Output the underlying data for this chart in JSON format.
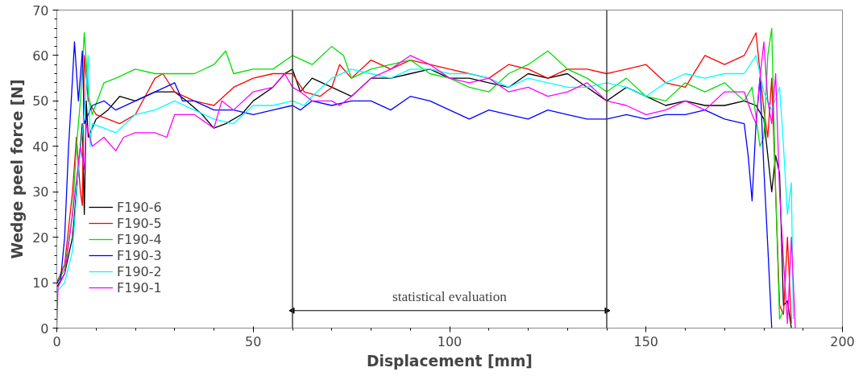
{
  "chart_data": {
    "type": "line",
    "xlabel": "Displacement [mm]",
    "ylabel": "Wedge peel force [N]",
    "xlim": [
      0,
      200
    ],
    "ylim": [
      0,
      70
    ],
    "xticks": [
      0,
      50,
      100,
      150,
      200
    ],
    "yticks": [
      0,
      10,
      20,
      30,
      40,
      50,
      60,
      70
    ],
    "grid": false,
    "legend": "bottom left",
    "line_style": "solid",
    "marker": "none",
    "ref_lines": [
      {
        "axis": "x",
        "value": 60,
        "color": "#404040"
      },
      {
        "axis": "x",
        "value": 140,
        "color": "#404040"
      }
    ],
    "annotations": [
      "statistical evaluation"
    ],
    "series": [
      {
        "name": "F190-6",
        "color": "#000000",
        "x": [
          0,
          2,
          4,
          5.5,
          6.5,
          7,
          7.5,
          8,
          10,
          13,
          16,
          20,
          25,
          30,
          33,
          37,
          40,
          43,
          47,
          50,
          55,
          58,
          60,
          62,
          65,
          70,
          75,
          80,
          85,
          90,
          95,
          100,
          105,
          110,
          115,
          120,
          125,
          130,
          135,
          140,
          145,
          150,
          155,
          160,
          165,
          170,
          175,
          178,
          180,
          182,
          183,
          184,
          185,
          186,
          187
        ],
        "values": [
          9,
          12,
          20,
          35,
          45,
          25,
          50,
          42,
          46,
          48,
          51,
          50,
          52,
          52,
          50,
          47,
          44,
          45,
          47,
          50,
          53,
          56,
          57,
          52,
          55,
          53,
          51,
          55,
          55,
          56,
          57,
          55,
          55,
          54,
          53,
          56,
          55,
          56,
          53,
          50,
          53,
          51,
          49,
          50,
          49,
          49,
          50,
          49,
          46,
          30,
          38,
          34,
          5,
          6,
          0
        ]
      },
      {
        "name": "F190-5",
        "color": "#ff0000",
        "x": [
          0,
          2,
          4,
          5,
          6,
          6.5,
          7,
          8,
          10,
          13,
          16,
          20,
          25,
          27,
          30,
          35,
          40,
          45,
          50,
          55,
          60,
          63,
          67,
          70,
          72,
          75,
          80,
          85,
          90,
          95,
          100,
          105,
          110,
          115,
          120,
          125,
          130,
          135,
          140,
          145,
          150,
          155,
          160,
          165,
          170,
          175,
          178,
          180,
          181,
          182,
          183,
          184,
          185,
          186,
          187
        ],
        "values": [
          10,
          14,
          30,
          42,
          30,
          27,
          60,
          50,
          47,
          46,
          45,
          47,
          55,
          56,
          52,
          50,
          49,
          53,
          55,
          56,
          56,
          52,
          51,
          53,
          58,
          55,
          59,
          57,
          59,
          58,
          57,
          56,
          55,
          58,
          57,
          55,
          57,
          57,
          56,
          57,
          58,
          54,
          53,
          60,
          58,
          60,
          65,
          48,
          42,
          55,
          30,
          5,
          3,
          20,
          1
        ]
      },
      {
        "name": "F190-4",
        "color": "#00e000",
        "x": [
          0,
          2,
          4,
          5,
          6,
          7,
          8,
          9,
          12,
          15,
          20,
          25,
          30,
          35,
          40,
          43,
          45,
          50,
          55,
          60,
          65,
          70,
          73,
          75,
          80,
          85,
          90,
          95,
          100,
          105,
          110,
          115,
          120,
          125,
          130,
          135,
          140,
          145,
          150,
          155,
          160,
          165,
          170,
          175,
          177,
          179,
          180,
          181,
          182,
          183,
          184,
          185
        ],
        "values": [
          10,
          13,
          25,
          40,
          50,
          65,
          52,
          47,
          54,
          55,
          57,
          56,
          56,
          56,
          58,
          61,
          56,
          57,
          57,
          60,
          58,
          62,
          60,
          55,
          57,
          58,
          59,
          56,
          55,
          53,
          52,
          56,
          58,
          61,
          57,
          55,
          52,
          55,
          51,
          50,
          54,
          52,
          54,
          50,
          53,
          40,
          42,
          60,
          66,
          30,
          2,
          4
        ]
      },
      {
        "name": "F190-3",
        "color": "#0000ff",
        "x": [
          0,
          1,
          2,
          3,
          4,
          4.5,
          5.5,
          6.5,
          7,
          9,
          12,
          15,
          20,
          25,
          30,
          32,
          35,
          40,
          45,
          50,
          55,
          60,
          62,
          65,
          70,
          75,
          80,
          85,
          90,
          95,
          100,
          105,
          110,
          115,
          120,
          125,
          130,
          135,
          140,
          145,
          150,
          155,
          160,
          165,
          170,
          175,
          176,
          177,
          178,
          179,
          180,
          181,
          182
        ],
        "values": [
          10,
          11,
          20,
          40,
          55,
          63,
          50,
          61,
          45,
          49,
          50,
          48,
          50,
          52,
          54,
          50,
          50,
          48,
          48,
          47,
          48,
          49,
          48,
          50,
          49,
          50,
          50,
          48,
          51,
          50,
          48,
          46,
          48,
          47,
          46,
          48,
          47,
          46,
          46,
          47,
          46,
          47,
          47,
          48,
          46,
          45,
          38,
          28,
          45,
          55,
          35,
          18,
          0
        ]
      },
      {
        "name": "F190-2",
        "color": "#00ffff",
        "x": [
          0,
          2,
          4,
          5.5,
          7,
          8,
          8.5,
          9,
          12,
          15,
          20,
          25,
          30,
          35,
          40,
          45,
          50,
          55,
          60,
          63,
          65,
          70,
          75,
          80,
          85,
          90,
          95,
          100,
          105,
          110,
          115,
          120,
          125,
          130,
          135,
          140,
          145,
          150,
          155,
          160,
          165,
          170,
          175,
          178,
          180,
          182,
          184,
          185,
          186,
          187,
          187.5
        ],
        "values": [
          8,
          10,
          17,
          35,
          47,
          60,
          40,
          45,
          44,
          43,
          47,
          48,
          50,
          48,
          46,
          45,
          49,
          49,
          50,
          49,
          51,
          55,
          57,
          56,
          55,
          57,
          57,
          56,
          56,
          55,
          53,
          55,
          54,
          53,
          53,
          54,
          53,
          51,
          54,
          56,
          55,
          56,
          56,
          60,
          52,
          48,
          53,
          40,
          25,
          32,
          2
        ]
      },
      {
        "name": "F190-1",
        "color": "#ff00ff",
        "x": [
          0,
          0.3,
          2,
          4,
          6,
          7,
          7.5,
          9,
          12,
          15,
          17,
          20,
          25,
          28,
          30,
          35,
          40,
          42,
          45,
          50,
          55,
          58,
          60,
          62,
          65,
          70,
          72,
          75,
          80,
          85,
          90,
          95,
          100,
          105,
          110,
          115,
          120,
          125,
          130,
          135,
          140,
          145,
          150,
          155,
          160,
          165,
          170,
          175,
          177,
          178,
          179,
          180,
          181,
          182,
          183,
          184,
          185,
          186,
          187,
          188
        ],
        "values": [
          0,
          9,
          12,
          25,
          40,
          35,
          45,
          40,
          42,
          39,
          42,
          43,
          43,
          42,
          47,
          47,
          44,
          50,
          48,
          52,
          53,
          56,
          53,
          52,
          50,
          50,
          49,
          51,
          55,
          57,
          60,
          58,
          55,
          54,
          55,
          52,
          53,
          51,
          52,
          54,
          50,
          49,
          47,
          48,
          50,
          48,
          52,
          52,
          47,
          45,
          55,
          63,
          50,
          45,
          56,
          30,
          15,
          1,
          20,
          0
        ]
      }
    ]
  }
}
